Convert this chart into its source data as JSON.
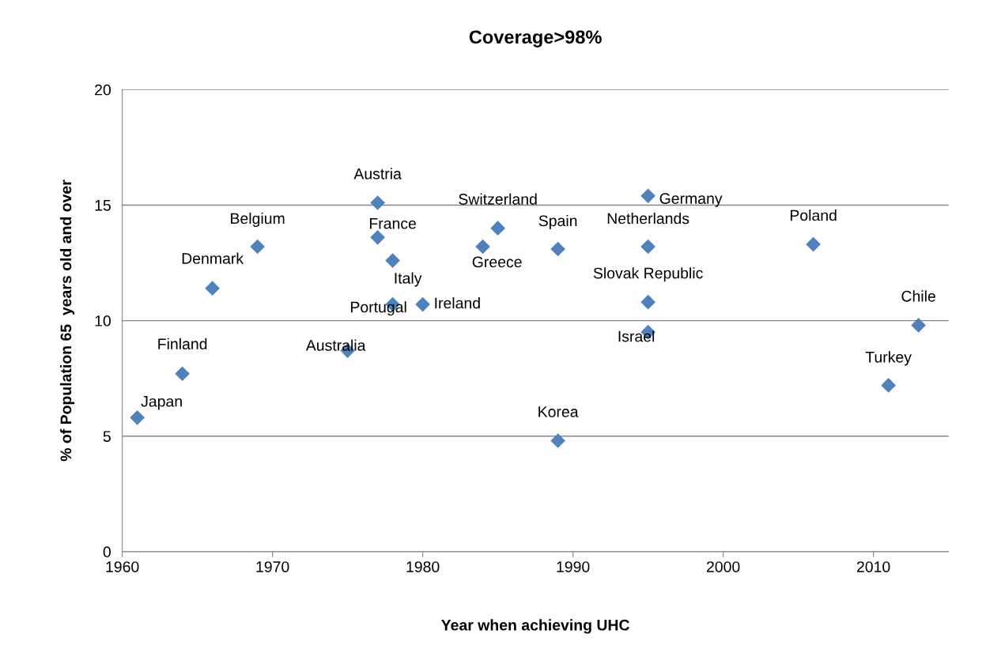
{
  "chart_data": {
    "type": "scatter",
    "title": "Coverage>98%",
    "xlabel": "Year when achieving UHC",
    "ylabel": "% of Population 65  years old and over",
    "x": [
      1961,
      1964,
      1966,
      1969,
      1975,
      1977,
      1977,
      1978,
      1978,
      1980,
      1984,
      1985,
      1989,
      1989,
      1995,
      1995,
      1995,
      1995,
      2006,
      2011,
      2013
    ],
    "series": [
      {
        "color": "#4f81bd",
        "values": [
          5.8,
          7.7,
          11.4,
          13.2,
          8.7,
          15.1,
          13.6,
          12.6,
          10.7,
          10.7,
          13.2,
          14.0,
          13.1,
          4.8,
          15.4,
          13.2,
          10.8,
          9.5,
          13.3,
          7.2,
          9.8
        ]
      }
    ],
    "annotations": [
      {
        "text": "Japan",
        "x": 1961,
        "y": 5.8
      },
      {
        "text": "Finland",
        "x": 1964,
        "y": 7.7
      },
      {
        "text": "Denmark",
        "x": 1966,
        "y": 11.4
      },
      {
        "text": "Belgium",
        "x": 1969,
        "y": 13.2
      },
      {
        "text": "Australia",
        "x": 1975,
        "y": 8.7
      },
      {
        "text": "Austria",
        "x": 1977,
        "y": 15.1
      },
      {
        "text": "France",
        "x": 1977,
        "y": 13.6
      },
      {
        "text": "Italy",
        "x": 1978,
        "y": 12.6
      },
      {
        "text": "Portugal",
        "x": 1978,
        "y": 10.7
      },
      {
        "text": "Ireland",
        "x": 1980,
        "y": 10.7
      },
      {
        "text": "Greece",
        "x": 1984,
        "y": 13.2
      },
      {
        "text": "Switzerland",
        "x": 1985,
        "y": 14.0
      },
      {
        "text": "Spain",
        "x": 1989,
        "y": 13.1
      },
      {
        "text": "Korea",
        "x": 1989,
        "y": 4.8
      },
      {
        "text": "Germany",
        "x": 1995,
        "y": 15.4
      },
      {
        "text": "Netherlands",
        "x": 1995,
        "y": 13.2
      },
      {
        "text": "Slovak Republic",
        "x": 1995,
        "y": 10.8
      },
      {
        "text": "Israel",
        "x": 1995,
        "y": 9.5
      },
      {
        "text": "Poland",
        "x": 2006,
        "y": 13.3
      },
      {
        "text": "Turkey",
        "x": 2011,
        "y": 7.2
      },
      {
        "text": "Chile",
        "x": 2013,
        "y": 9.8
      }
    ],
    "xlim": [
      1960,
      2015
    ],
    "xticks": [
      1960,
      1970,
      1980,
      1990,
      2000,
      2010
    ],
    "ylim": [
      0,
      20
    ],
    "yticks": [
      0,
      5,
      10,
      15,
      20
    ],
    "grid": "y",
    "marker": "diamond",
    "legend": false
  }
}
